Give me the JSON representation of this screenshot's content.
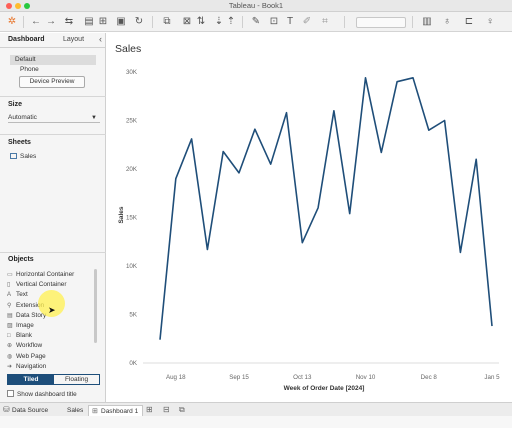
{
  "window": {
    "title": "Tableau - Book1"
  },
  "left_pane": {
    "tabs": [
      "Dashboard",
      "Layout"
    ],
    "collapse_icon": "chevron-left-icon",
    "device": {
      "default": "Default",
      "phone": "Phone",
      "preview_button": "Device Preview"
    },
    "size": {
      "header": "Size",
      "value": "Automatic"
    },
    "sheets": {
      "header": "Sheets",
      "items": [
        "Sales"
      ]
    },
    "objects": {
      "header": "Objects",
      "items": [
        {
          "label": "Horizontal Container",
          "icon": "horizontal-container-icon"
        },
        {
          "label": "Vertical Container",
          "icon": "vertical-container-icon"
        },
        {
          "label": "Text",
          "icon": "text-icon"
        },
        {
          "label": "Extension",
          "icon": "extension-icon"
        },
        {
          "label": "Data Story",
          "icon": "data-story-icon"
        },
        {
          "label": "Image",
          "icon": "image-icon"
        },
        {
          "label": "Blank",
          "icon": "blank-icon"
        },
        {
          "label": "Workflow",
          "icon": "workflow-icon"
        },
        {
          "label": "Web Page",
          "icon": "web-page-icon"
        },
        {
          "label": "Navigation",
          "icon": "navigation-icon"
        }
      ]
    },
    "layout_mode": {
      "tiled": "Tiled",
      "floating": "Floating",
      "selected": "Tiled"
    },
    "show_title": "Show dashboard title"
  },
  "sheet": {
    "title": "Sales"
  },
  "chart_data": {
    "type": "line",
    "title": "Sales",
    "xlabel": "Week of Order Date [2024]",
    "ylabel": "Sales",
    "x_ticks": [
      "Aug 18",
      "Sep 15",
      "Oct 13",
      "Nov 10",
      "Dec 8",
      "Jan 5"
    ],
    "y_ticks": [
      "0K",
      "5K",
      "10K",
      "15K",
      "20K",
      "25K",
      "30K"
    ],
    "ylim": [
      0,
      30000
    ],
    "grid": false,
    "color": "#1f4e79",
    "series": [
      {
        "values": [
          2400,
          19000,
          23100,
          11700,
          21800,
          19600,
          24100,
          20500,
          25800,
          12400,
          16000,
          26000,
          15400,
          29400,
          21700,
          29000,
          29400,
          24000,
          25000,
          11400,
          21000,
          3800
        ]
      }
    ]
  },
  "bottom_tabs": {
    "items": [
      "Data Source",
      "Sales",
      "Dashboard 1"
    ],
    "active": "Dashboard 1",
    "icons": [
      "new-worksheet-icon",
      "new-dashboard-icon",
      "new-story-icon"
    ]
  },
  "colors": {
    "accent": "#1d4e7a",
    "line": "#1f4e79"
  }
}
